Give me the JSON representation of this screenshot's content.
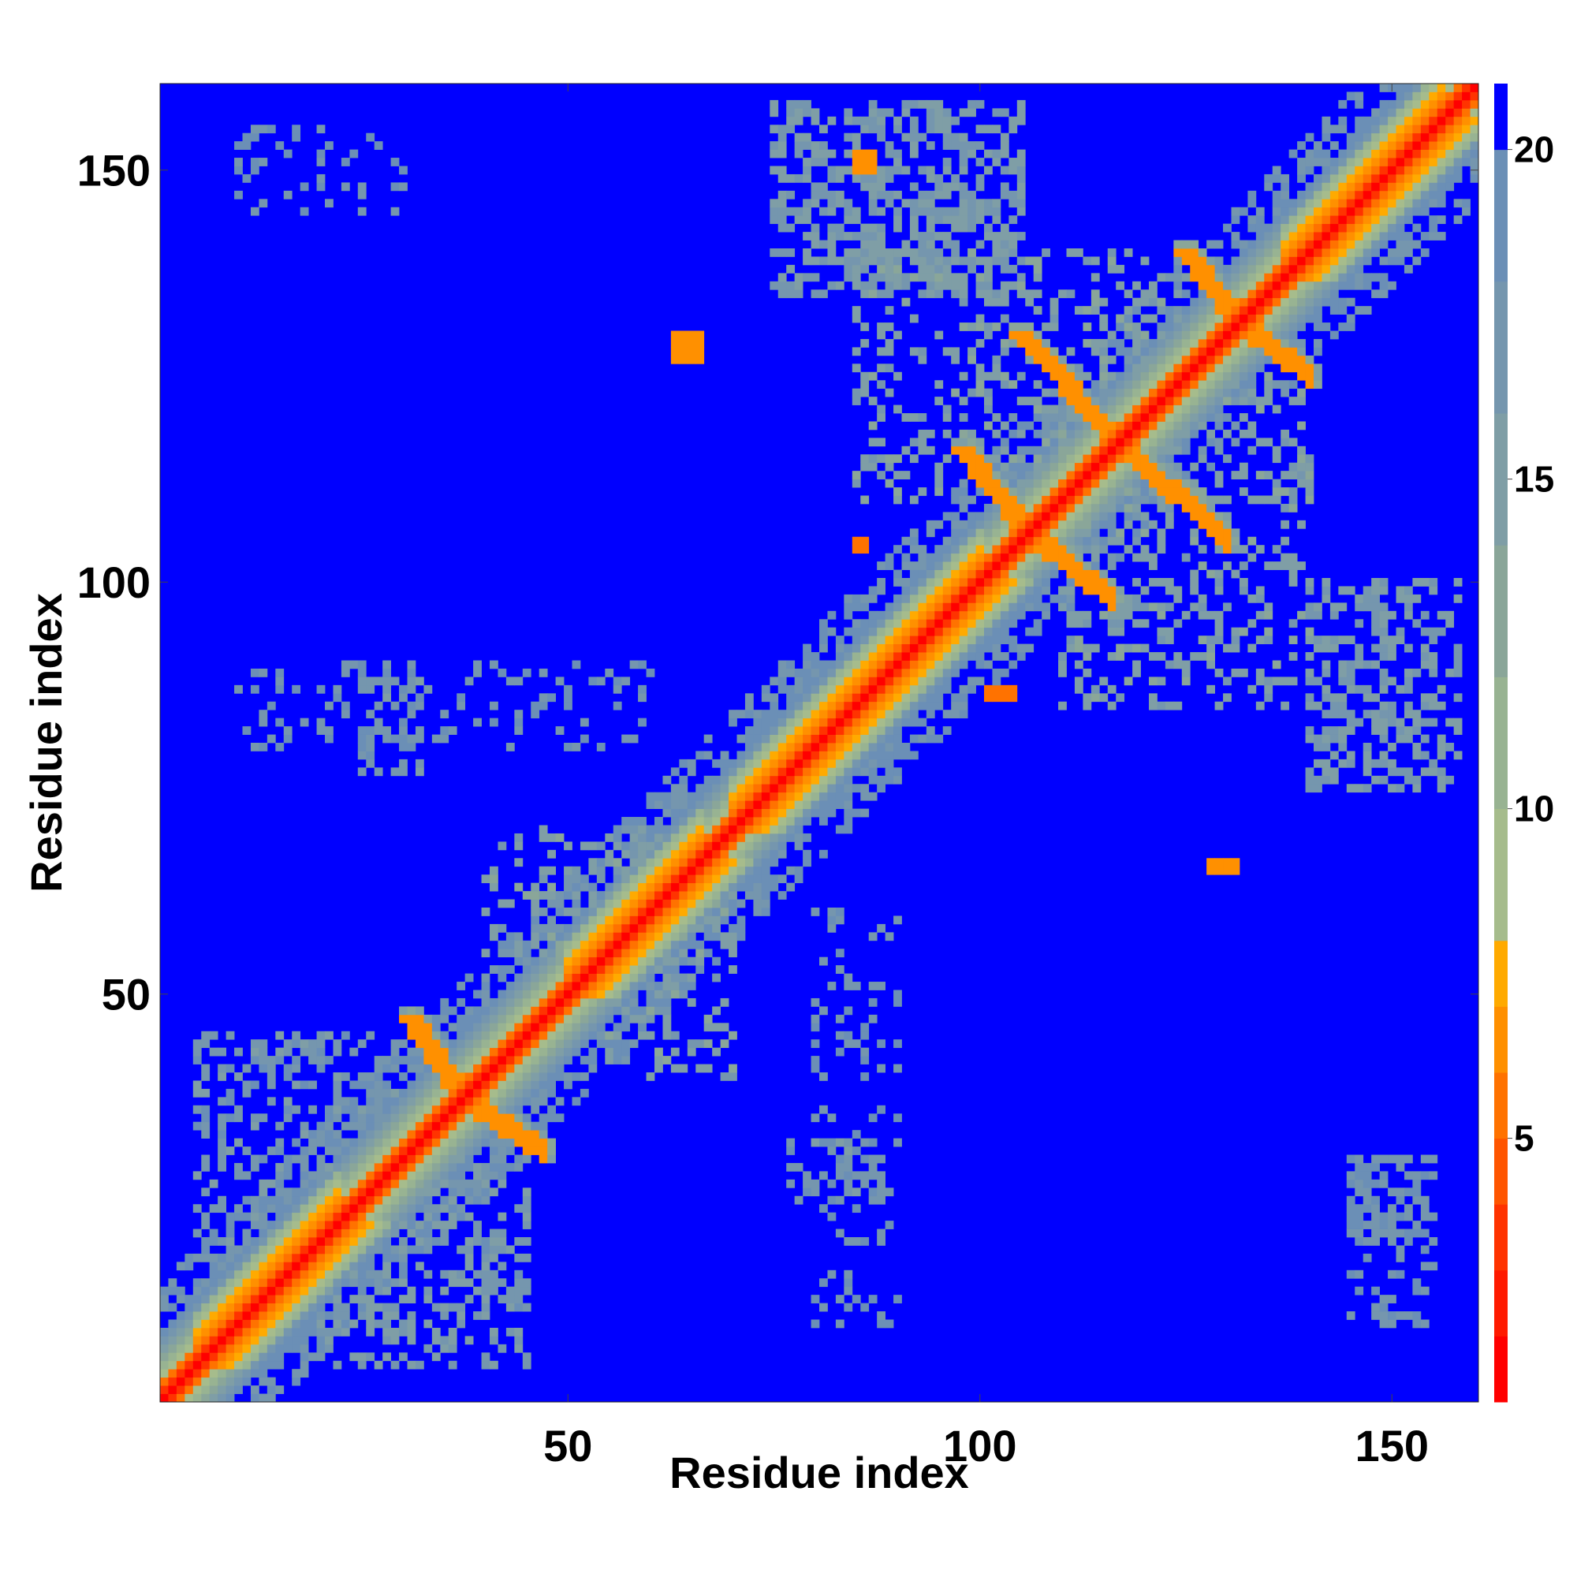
{
  "chart_data": {
    "type": "heatmap",
    "title": "",
    "xlabel": "Residue index",
    "ylabel": "Residue index",
    "xlim": [
      0.5,
      160.5
    ],
    "ylim": [
      0.5,
      160.5
    ],
    "x_ticks": [
      50,
      100,
      150
    ],
    "y_ticks": [
      50,
      100,
      150
    ],
    "x_tick_labels": [
      "50",
      "100",
      "150"
    ],
    "y_tick_labels": [
      "50",
      "100",
      "150"
    ],
    "n_residues": 160,
    "colorbar": {
      "range": [
        1,
        21
      ],
      "ticks": [
        5,
        10,
        15,
        20
      ],
      "tick_labels": [
        "5",
        "10",
        "15",
        "20"
      ],
      "levels": [
        {
          "from": 1,
          "to": 2,
          "color": "#ff0000"
        },
        {
          "from": 2,
          "to": 3,
          "color": "#ff1a00"
        },
        {
          "from": 3,
          "to": 4,
          "color": "#ff3300"
        },
        {
          "from": 4,
          "to": 5,
          "color": "#ff5500"
        },
        {
          "from": 5,
          "to": 6,
          "color": "#ff7200"
        },
        {
          "from": 6,
          "to": 7,
          "color": "#ff9000"
        },
        {
          "from": 7,
          "to": 8,
          "color": "#ffaa00"
        },
        {
          "from": 8,
          "to": 10,
          "color": "#a6bc8c"
        },
        {
          "from": 10,
          "to": 12,
          "color": "#98b392"
        },
        {
          "from": 12,
          "to": 14,
          "color": "#8aa699"
        },
        {
          "from": 14,
          "to": 16,
          "color": "#7f9ea6"
        },
        {
          "from": 16,
          "to": 18,
          "color": "#7596ae"
        },
        {
          "from": 18,
          "to": 20,
          "color": "#6b8fb6"
        },
        {
          "from": 20,
          "to": 21,
          "color": "#0000ff"
        }
      ]
    },
    "background_value": 21,
    "diagonal_band": [
      {
        "offset": 0,
        "value": 1.5
      },
      {
        "offset": 1,
        "value": 3.5
      },
      {
        "offset": 2,
        "value": 5.5
      },
      {
        "offset": 3,
        "value": 9
      },
      {
        "offset": 4,
        "value": 11
      },
      {
        "offset": 5,
        "value": 13
      },
      {
        "offset": 6,
        "value": 15
      },
      {
        "offset": 7,
        "value": 17
      },
      {
        "offset": 8,
        "value": 19
      }
    ],
    "helical_segments": [
      {
        "start": 5,
        "end": 22
      },
      {
        "start": 50,
        "end": 66
      },
      {
        "start": 70,
        "end": 92
      },
      {
        "start": 88,
        "end": 100
      },
      {
        "start": 137,
        "end": 156
      }
    ],
    "contact_features": [
      {
        "i_range": [
          31,
          37
        ],
        "j_range": [
          38,
          47
        ],
        "kind": "antiparallel",
        "value": 7
      },
      {
        "i_range": [
          98,
          106
        ],
        "j_range": [
          106,
          116
        ],
        "kind": "antiparallel",
        "value": 7
      },
      {
        "i_range": [
          105,
          116
        ],
        "j_range": [
          118,
          130
        ],
        "kind": "antiparallel",
        "value": 7
      },
      {
        "i_range": [
          125,
          132
        ],
        "j_range": [
          131,
          140
        ],
        "kind": "antiparallel",
        "value": 7
      },
      {
        "i_range": [
          63,
          66
        ],
        "j_range": [
          127,
          130
        ],
        "kind": "patch",
        "value": 6
      },
      {
        "i_range": [
          128,
          131
        ],
        "j_range": [
          65,
          66
        ],
        "kind": "patch",
        "value": 6
      },
      {
        "i_range": [
          85,
          87
        ],
        "j_range": [
          150,
          152
        ],
        "kind": "patch",
        "value": 6
      },
      {
        "i_range": [
          85,
          86
        ],
        "j_range": [
          104,
          105
        ],
        "kind": "patch",
        "value": 5
      },
      {
        "i_range": [
          101,
          104
        ],
        "j_range": [
          86,
          87
        ],
        "kind": "patch",
        "value": 5
      }
    ],
    "contact_regions": [
      {
        "i_range": [
          75,
          105
        ],
        "j_range": [
          135,
          158
        ],
        "value": 16,
        "density": 0.55
      },
      {
        "i_range": [
          140,
          158
        ],
        "j_range": [
          75,
          100
        ],
        "value": 16,
        "density": 0.45
      },
      {
        "i_range": [
          5,
          30
        ],
        "j_range": [
          20,
          45
        ],
        "value": 17,
        "density": 0.35
      },
      {
        "i_range": [
          20,
          45
        ],
        "j_range": [
          5,
          30
        ],
        "value": 16,
        "density": 0.35
      },
      {
        "i_range": [
          110,
          140
        ],
        "j_range": [
          85,
          125
        ],
        "value": 15,
        "density": 0.28
      },
      {
        "i_range": [
          85,
          125
        ],
        "j_range": [
          110,
          140
        ],
        "value": 15,
        "density": 0.28
      },
      {
        "i_range": [
          40,
          70
        ],
        "j_range": [
          55,
          70
        ],
        "value": 15,
        "density": 0.25
      },
      {
        "i_range": [
          55,
          70
        ],
        "j_range": [
          40,
          70
        ],
        "value": 15,
        "density": 0.25
      },
      {
        "i_range": [
          10,
          60
        ],
        "j_range": [
          80,
          90
        ],
        "value": 18,
        "density": 0.18
      },
      {
        "i_range": [
          80,
          90
        ],
        "j_range": [
          10,
          60
        ],
        "value": 18,
        "density": 0.18
      },
      {
        "i_range": [
          10,
          30
        ],
        "j_range": [
          145,
          155
        ],
        "value": 18,
        "density": 0.2
      },
      {
        "i_range": [
          145,
          155
        ],
        "j_range": [
          10,
          30
        ],
        "value": 18,
        "density": 0.2
      },
      {
        "i_range": [
          145,
          155
        ],
        "j_range": [
          20,
          30
        ],
        "value": 18,
        "density": 0.55
      },
      {
        "i_range": [
          77,
          88
        ],
        "j_range": [
          25,
          32
        ],
        "value": 17,
        "density": 0.4
      },
      {
        "i_range": [
          25,
          32
        ],
        "j_range": [
          77,
          88
        ],
        "value": 17,
        "density": 0.4
      },
      {
        "i_range": [
          12,
          20
        ],
        "j_range": [
          40,
          44
        ],
        "value": 18,
        "density": 0.35
      },
      {
        "i_range": [
          40,
          44
        ],
        "j_range": [
          12,
          20
        ],
        "value": 18,
        "density": 0.35
      }
    ]
  }
}
